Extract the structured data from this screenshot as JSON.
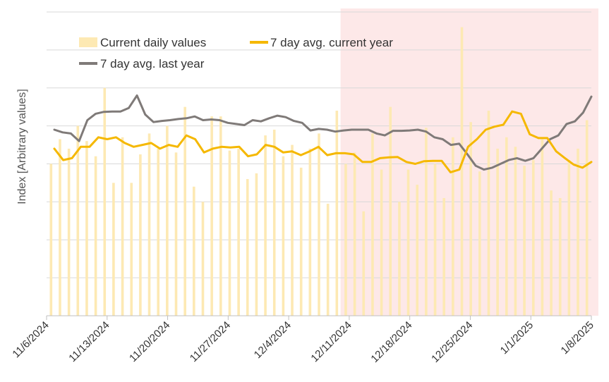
{
  "chart_data": {
    "type": "bar+line",
    "title": "",
    "ylabel": "Index [Arbitrary values]",
    "xlabel": "",
    "ylim": [
      0,
      8
    ],
    "yticks_labeled": false,
    "grid": "horizontal",
    "shaded_region": {
      "from": "12/10/2024",
      "to": "1/8/2025",
      "color": "#fde8e8"
    },
    "x_tick_labels": [
      "11/6/2024",
      "11/13/2024",
      "11/20/2024",
      "11/27/2024",
      "12/4/2024",
      "12/11/2024",
      "12/18/2024",
      "12/25/2024",
      "1/1/2025",
      "1/8/2025"
    ],
    "legend": {
      "current_daily": "Current daily values",
      "avg_current": "7 day avg. current year",
      "avg_last": "7 day avg. last year"
    },
    "colors": {
      "bars": "#fde9b3",
      "avg_current": "#f5b800",
      "avg_last": "#7f7a78",
      "grid": "#d9d9d9",
      "axis": "#bfbfbf"
    },
    "series": [
      {
        "name": "Current daily values",
        "type": "bar",
        "values": [
          4.0,
          4.65,
          4.4,
          5.0,
          4.6,
          4.2,
          6.0,
          3.5,
          4.7,
          3.5,
          4.25,
          4.8,
          4.4,
          5.0,
          4.3,
          5.5,
          3.4,
          3.0,
          5.25,
          5.25,
          4.35,
          4.4,
          3.6,
          3.75,
          4.75,
          4.9,
          4.2,
          4.5,
          3.9,
          4.4,
          4.8,
          2.95,
          5.4,
          4.0,
          4.3,
          2.75,
          4.8,
          3.85,
          5.5,
          3.0,
          3.85,
          3.45,
          4.95,
          4.0,
          3.1,
          4.7,
          7.6,
          5.1,
          3.8,
          5.4,
          4.4,
          4.7,
          4.45,
          3.95,
          4.1,
          4.65,
          3.3,
          3.1,
          4.1,
          4.4,
          5.15
        ]
      },
      {
        "name": "7 day avg. current year",
        "type": "line",
        "values": [
          4.4,
          4.1,
          4.15,
          4.45,
          4.45,
          4.7,
          4.65,
          4.7,
          4.55,
          4.45,
          4.5,
          4.55,
          4.4,
          4.5,
          4.45,
          4.75,
          4.65,
          4.3,
          4.4,
          4.45,
          4.43,
          4.45,
          4.2,
          4.25,
          4.5,
          4.45,
          4.3,
          4.33,
          4.23,
          4.33,
          4.45,
          4.23,
          4.28,
          4.28,
          4.25,
          4.05,
          4.05,
          4.15,
          4.17,
          4.18,
          4.05,
          4.0,
          4.07,
          4.08,
          4.08,
          3.78,
          3.85,
          4.45,
          4.65,
          4.9,
          4.98,
          5.03,
          5.38,
          5.32,
          4.78,
          4.68,
          4.68,
          4.33,
          4.15,
          3.98,
          3.9,
          4.05
        ]
      },
      {
        "name": "7 day avg. last year",
        "type": "line",
        "values": [
          4.9,
          4.83,
          4.8,
          4.6,
          5.15,
          5.32,
          5.37,
          5.38,
          5.38,
          5.47,
          5.8,
          5.3,
          5.1,
          5.13,
          5.15,
          5.18,
          5.2,
          5.25,
          5.15,
          5.17,
          5.15,
          5.08,
          5.05,
          5.02,
          5.15,
          5.12,
          5.2,
          5.27,
          5.23,
          5.13,
          5.08,
          4.88,
          4.92,
          4.9,
          4.85,
          4.88,
          4.9,
          4.9,
          4.9,
          4.8,
          4.75,
          4.87,
          4.87,
          4.88,
          4.9,
          4.85,
          4.7,
          4.65,
          4.5,
          4.53,
          4.25,
          3.95,
          3.85,
          3.9,
          4.0,
          4.1,
          4.15,
          4.08,
          4.15,
          4.4,
          4.65,
          4.75,
          5.05,
          5.12,
          5.35,
          5.77
        ]
      }
    ]
  }
}
